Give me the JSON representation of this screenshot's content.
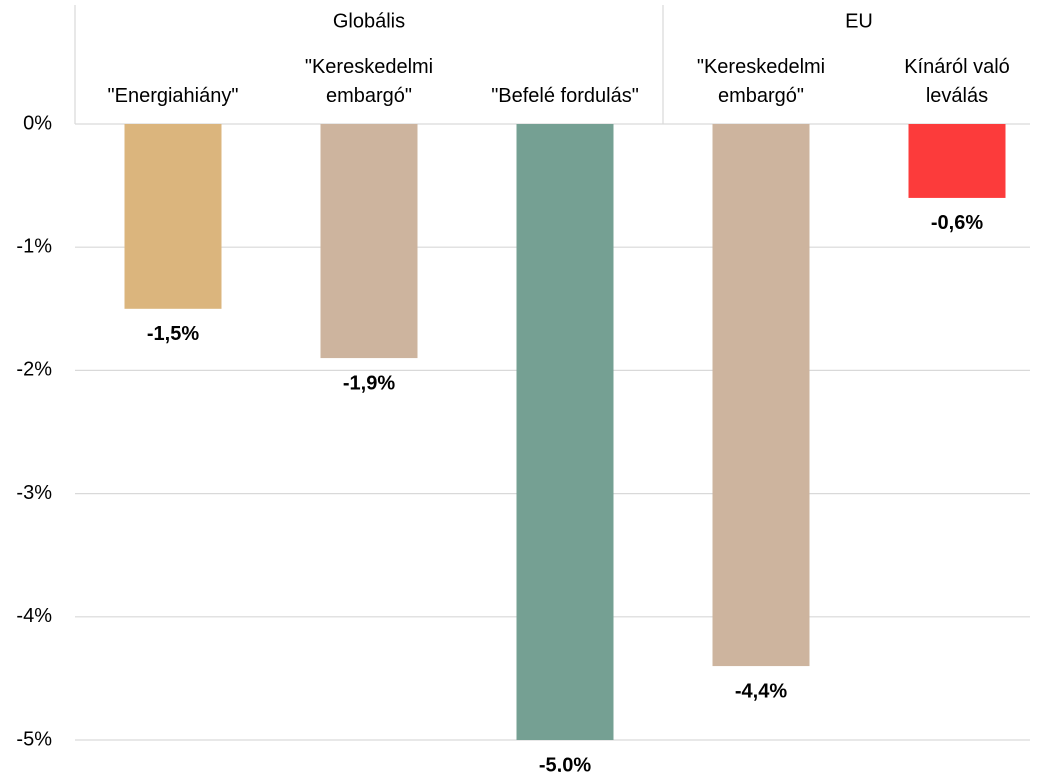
{
  "chart_data": {
    "type": "bar",
    "categories": [
      "\"Energiahiány\"",
      "\"Kereskedelmi\nembargó\"",
      "\"Befelé fordulás\"",
      "\"Kereskedelmi\nembargó\"",
      "Kínáról való\nleválás"
    ],
    "groups": [
      {
        "name": "Globális",
        "count": 3
      },
      {
        "name": "EU",
        "count": 2
      }
    ],
    "values": [
      -1.5,
      -1.9,
      -5.0,
      -4.4,
      -0.6
    ],
    "value_labels": [
      "-1,5%",
      "-1,9%",
      "-5,0%",
      "-4,4%",
      "-0,6%"
    ],
    "colors": [
      "#dbb57d",
      "#cdb49e",
      "#75a093",
      "#cdb49e",
      "#fc3b3b"
    ],
    "ylim": [
      -5,
      0
    ],
    "yticks": [
      {
        "value": 0,
        "label": "0%"
      },
      {
        "value": -1,
        "label": "-1%"
      },
      {
        "value": -2,
        "label": "-2%"
      },
      {
        "value": -3,
        "label": "-3%"
      },
      {
        "value": -4,
        "label": "-4%"
      },
      {
        "value": -5,
        "label": "-5%"
      }
    ],
    "grid": true
  }
}
